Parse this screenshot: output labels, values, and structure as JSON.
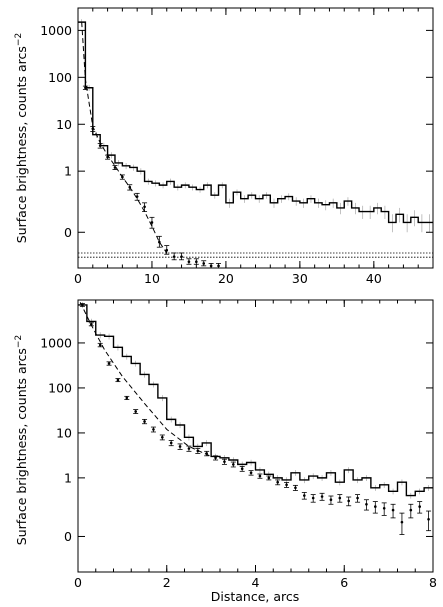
{
  "chart_data": [
    {
      "type": "line",
      "panel": "top",
      "ylabel": "Surface brightness, counts arcs",
      "ylabel_exponent": "−2",
      "xlim": [
        0,
        48
      ],
      "xticks": [
        0,
        10,
        20,
        30,
        40
      ],
      "xtick_labels": [
        "0",
        "10",
        "20",
        "30",
        "40"
      ],
      "yscale": "asinh",
      "yticks": [
        0,
        1,
        10,
        100,
        1000
      ],
      "ytick_labels": [
        "0",
        "1",
        "10",
        "100",
        "1000"
      ],
      "ylim": [
        -0.28,
        3000
      ],
      "background_lines": [
        -0.12,
        -0.155
      ],
      "series": [
        {
          "style": "histogram-solid",
          "x": [
            0.5,
            1.5,
            2.5,
            3.5,
            4.5,
            5.5,
            6.5,
            7.5,
            8.5,
            9.5,
            10.5,
            11.5,
            12.5,
            13.5,
            14.5,
            15.5,
            16.5,
            17.5,
            18.5,
            19.5,
            20.5,
            21.5,
            22.5,
            23.5,
            24.5,
            25.5,
            26.5,
            27.5,
            28.5,
            29.5,
            30.5,
            31.5,
            32.5,
            33.5,
            34.5,
            35.5,
            36.5,
            37.5,
            38.5,
            39.5,
            40.5,
            41.5,
            42.5,
            43.5,
            44.5,
            45.5,
            46.5,
            47.5
          ],
          "values": [
            1500,
            60,
            6,
            3.5,
            2.2,
            1.5,
            1.3,
            1.2,
            1.0,
            0.6,
            0.55,
            0.5,
            0.6,
            0.45,
            0.5,
            0.45,
            0.4,
            0.5,
            0.3,
            0.5,
            0.2,
            0.35,
            0.25,
            0.3,
            0.25,
            0.3,
            0.2,
            0.25,
            0.28,
            0.22,
            0.2,
            0.25,
            0.2,
            0.18,
            0.2,
            0.15,
            0.22,
            0.15,
            0.12,
            0.12,
            0.15,
            0.12,
            0.05,
            0.1,
            0.05,
            0.08,
            0.05,
            0.05
          ]
        },
        {
          "style": "points-errorbars",
          "x": [
            1,
            2,
            3,
            4,
            5,
            6,
            7,
            8,
            9,
            10,
            11,
            12,
            13,
            14,
            15,
            16,
            17,
            18,
            19
          ],
          "values": [
            60,
            8,
            3.5,
            2.0,
            1.2,
            0.75,
            0.45,
            0.28,
            0.16,
            0.05,
            -0.05,
            -0.1,
            -0.15,
            -0.15,
            -0.2,
            -0.2,
            -0.22,
            -0.25,
            -0.25
          ],
          "errors": [
            5,
            1,
            0.4,
            0.2,
            0.12,
            0.08,
            0.06,
            0.05,
            0.04,
            0.03,
            0.03,
            0.03,
            0.03,
            0.03,
            0.03,
            0.03,
            0.03,
            0.03,
            0.03
          ]
        },
        {
          "style": "model-dashed",
          "x": [
            0.5,
            1,
            2,
            3,
            4,
            5,
            6,
            7,
            8,
            9,
            10,
            11,
            12
          ],
          "values": [
            1500,
            90,
            9,
            4.0,
            2.2,
            1.3,
            0.75,
            0.45,
            0.25,
            0.12,
            0.03,
            -0.05,
            -0.12
          ]
        }
      ]
    },
    {
      "type": "line",
      "panel": "bottom",
      "xlabel": "Distance, arcs",
      "ylabel": "Surface brightness, counts arcs",
      "ylabel_exponent": "−2",
      "xlim": [
        0,
        8
      ],
      "xticks": [
        0,
        2,
        4,
        6,
        8
      ],
      "xtick_labels": [
        "0",
        "2",
        "4",
        "6",
        "8"
      ],
      "yscale": "asinh",
      "yticks": [
        0,
        1,
        10,
        100,
        1000
      ],
      "ytick_labels": [
        "0",
        "1",
        "10",
        "100",
        "1000"
      ],
      "ylim": [
        -0.3,
        9000
      ],
      "series": [
        {
          "style": "histogram-solid",
          "x": [
            0.1,
            0.3,
            0.5,
            0.7,
            0.9,
            1.1,
            1.3,
            1.5,
            1.7,
            1.9,
            2.1,
            2.3,
            2.5,
            2.7,
            2.9,
            3.1,
            3.3,
            3.5,
            3.7,
            3.9,
            4.1,
            4.3,
            4.5,
            4.7,
            4.9,
            5.1,
            5.3,
            5.5,
            5.7,
            5.9,
            6.1,
            6.3,
            6.5,
            6.7,
            6.9,
            7.1,
            7.3,
            7.5,
            7.7,
            7.9
          ],
          "values": [
            7000,
            3000,
            1500,
            1400,
            800,
            500,
            350,
            200,
            120,
            60,
            20,
            15,
            8,
            5,
            6,
            3,
            2.8,
            2.5,
            2,
            2.2,
            1.5,
            1.2,
            1.0,
            0.9,
            1.3,
            0.9,
            1.1,
            1.0,
            1.3,
            0.8,
            1.5,
            0.9,
            1.0,
            0.6,
            0.7,
            0.5,
            0.8,
            0.4,
            0.5,
            0.6
          ]
        },
        {
          "style": "points-errorbars",
          "x": [
            0.1,
            0.3,
            0.5,
            0.7,
            0.9,
            1.1,
            1.3,
            1.5,
            1.7,
            1.9,
            2.1,
            2.3,
            2.5,
            2.7,
            2.9,
            3.1,
            3.3,
            3.5,
            3.7,
            3.9,
            4.1,
            4.3,
            4.5,
            4.7,
            4.9,
            5.1,
            5.3,
            5.5,
            5.7,
            5.9,
            6.1,
            6.3,
            6.5,
            6.7,
            6.9,
            7.1,
            7.3,
            7.5,
            7.7,
            7.9
          ],
          "values": [
            7000,
            2600,
            900,
            350,
            150,
            60,
            30,
            18,
            12,
            8,
            6,
            5,
            4.5,
            4,
            3.5,
            2.8,
            2.3,
            2.0,
            1.6,
            1.3,
            1.1,
            1.0,
            0.8,
            0.7,
            0.6,
            0.4,
            0.35,
            0.38,
            0.32,
            0.35,
            0.3,
            0.35,
            0.25,
            0.22,
            0.2,
            0.18,
            0.08,
            0.18,
            0.22,
            0.1
          ],
          "errors": [
            500,
            200,
            80,
            30,
            12,
            5,
            3,
            2,
            1.5,
            1,
            0.8,
            0.7,
            0.6,
            0.5,
            0.4,
            0.3,
            0.3,
            0.25,
            0.2,
            0.15,
            0.12,
            0.1,
            0.1,
            0.09,
            0.08,
            0.07,
            0.07,
            0.07,
            0.07,
            0.07,
            0.07,
            0.07,
            0.07,
            0.07,
            0.07,
            0.07,
            0.07,
            0.07,
            0.07,
            0.07
          ]
        },
        {
          "style": "model-dashed",
          "x": [
            0.05,
            0.3,
            0.6,
            1.0,
            1.5,
            2.0,
            2.5,
            3.0
          ],
          "values": [
            8000,
            2500,
            700,
            180,
            45,
            12,
            5,
            3
          ]
        }
      ]
    }
  ]
}
